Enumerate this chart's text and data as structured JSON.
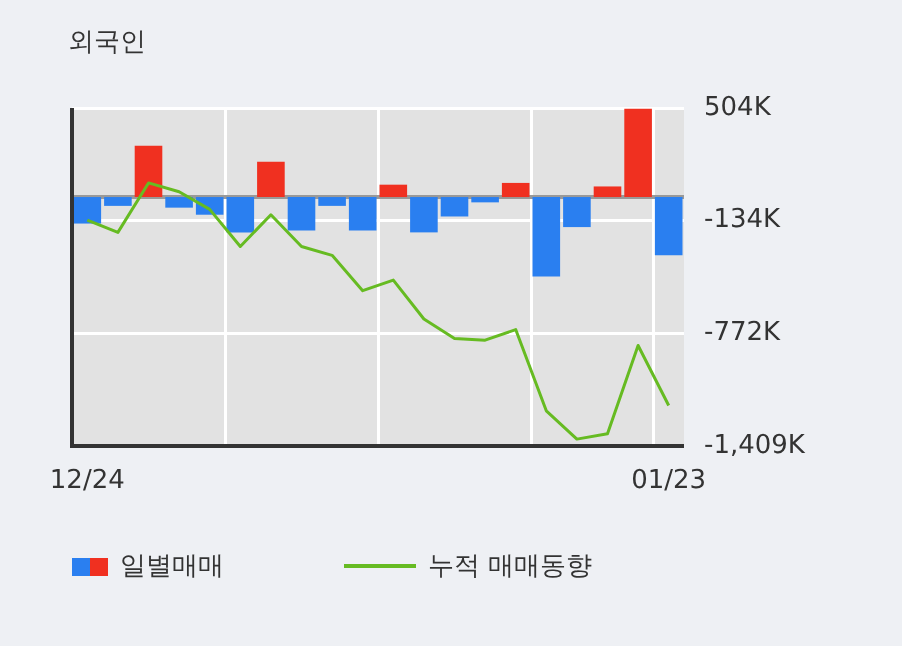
{
  "chart_data": {
    "type": "bar",
    "title": "외국인",
    "categories": [
      "12/24",
      null,
      null,
      null,
      null,
      null,
      null,
      null,
      null,
      null,
      null,
      null,
      null,
      null,
      null,
      null,
      null,
      null,
      null,
      "01/23"
    ],
    "series": [
      {
        "name": "일별매매",
        "colors": [
          "#2a7ff0",
          "#2a7ff0",
          "#f03020",
          "#2a7ff0",
          "#2a7ff0",
          "#2a7ff0",
          "#f03020",
          "#2a7ff0",
          "#2a7ff0",
          "#2a7ff0",
          "#f03020",
          "#2a7ff0",
          "#2a7ff0",
          "#2a7ff0",
          "#f03020",
          "#2a7ff0",
          "#2a7ff0",
          "#f03020",
          "#f03020",
          "#2a7ff0"
        ],
        "values": [
          -150,
          -50,
          290,
          -60,
          -100,
          -200,
          200,
          -190,
          -50,
          -190,
          70,
          -200,
          -110,
          -30,
          80,
          -450,
          -170,
          60,
          500,
          -330
        ]
      },
      {
        "name": "누적 매매동향",
        "type": "line",
        "color": "#66bb22",
        "values": [
          -130,
          -200,
          80,
          30,
          -70,
          -280,
          -100,
          -280,
          -330,
          -530,
          -470,
          -690,
          -800,
          -810,
          -750,
          -1210,
          -1370,
          -1340,
          -840,
          -1180
        ]
      }
    ],
    "ylim": [
      -1409,
      504
    ],
    "yticks": [
      {
        "value": 504,
        "label": "504K"
      },
      {
        "value": -134,
        "label": "-134K"
      },
      {
        "value": -772,
        "label": "-772K"
      },
      {
        "value": -1409,
        "label": "-1,409K"
      }
    ],
    "ref_lines": [
      {
        "axis": "y",
        "value": 0,
        "color": "#999999"
      }
    ],
    "grid": true,
    "legend": "bottom",
    "marker": "none",
    "line_style": "solid"
  }
}
